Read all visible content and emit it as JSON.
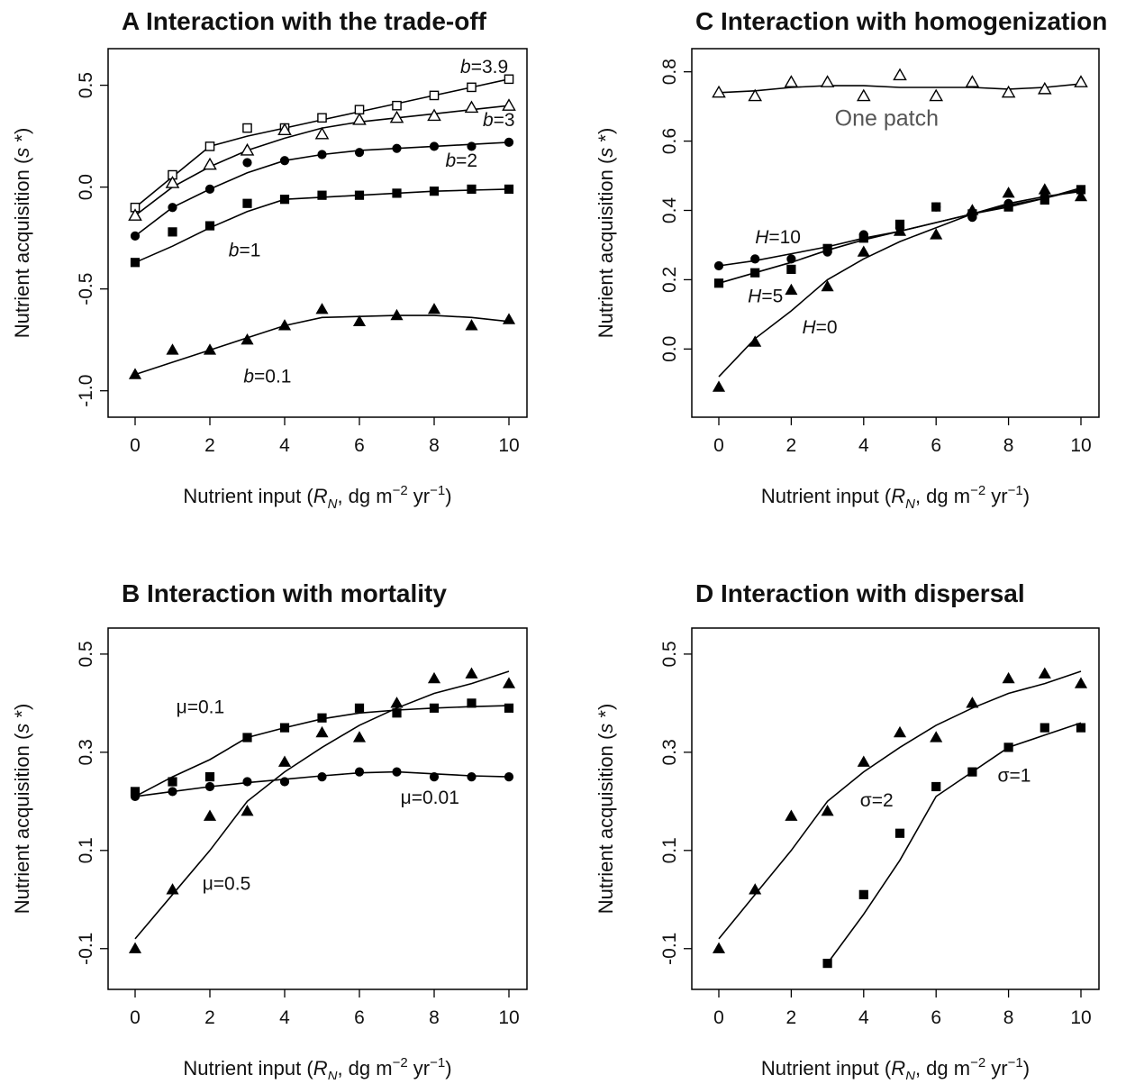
{
  "chart_data": [
    {
      "id": "A",
      "type": "scatter",
      "title": "A Interaction with the trade-off",
      "xlabel": "Nutrient input (R_N, dg m^-2 yr^-1)",
      "ylabel": "Nutrient acquisition (s*)",
      "xlim": [
        0,
        10
      ],
      "ylim": [
        -1.05,
        0.6
      ],
      "xticks": [
        0,
        2,
        4,
        6,
        8,
        10
      ],
      "yticks": [
        -1.0,
        -0.5,
        0.0,
        0.5
      ],
      "ytick_labels": [
        "-1.0",
        "-0.5",
        "0.0",
        "0.5"
      ],
      "series": [
        {
          "marker": "open-square",
          "points_x": [
            0,
            1,
            2,
            3,
            4,
            5,
            6,
            7,
            8,
            9,
            10
          ],
          "points_y": [
            -0.1,
            0.06,
            0.2,
            0.29,
            0.29,
            0.34,
            0.38,
            0.4,
            0.45,
            0.49,
            0.53
          ],
          "line_x": [
            0,
            1,
            2,
            3,
            4,
            5,
            6,
            7,
            8,
            9,
            10
          ],
          "line_y": [
            -0.1,
            0.05,
            0.2,
            0.25,
            0.29,
            0.33,
            0.37,
            0.41,
            0.45,
            0.49,
            0.53
          ]
        },
        {
          "marker": "open-triangle",
          "points_x": [
            0,
            1,
            2,
            3,
            4,
            5,
            6,
            7,
            8,
            9,
            10
          ],
          "points_y": [
            -0.14,
            0.02,
            0.11,
            0.18,
            0.28,
            0.26,
            0.33,
            0.34,
            0.35,
            0.39,
            0.4
          ],
          "line_x": [
            0,
            1,
            2,
            3,
            4,
            5,
            6,
            7,
            8,
            9,
            10
          ],
          "line_y": [
            -0.14,
            0.0,
            0.1,
            0.18,
            0.24,
            0.29,
            0.32,
            0.34,
            0.36,
            0.38,
            0.4
          ]
        },
        {
          "marker": "filled-circle",
          "points_x": [
            0,
            1,
            2,
            3,
            4,
            5,
            6,
            7,
            8,
            9,
            10
          ],
          "points_y": [
            -0.24,
            -0.1,
            -0.01,
            0.12,
            0.13,
            0.16,
            0.17,
            0.19,
            0.2,
            0.2,
            0.22
          ],
          "line_x": [
            0,
            1,
            2,
            3,
            4,
            5,
            6,
            7,
            8,
            9,
            10
          ],
          "line_y": [
            -0.24,
            -0.1,
            -0.01,
            0.07,
            0.13,
            0.16,
            0.18,
            0.19,
            0.2,
            0.21,
            0.22
          ]
        },
        {
          "marker": "filled-square",
          "points_x": [
            0,
            1,
            2,
            3,
            4,
            5,
            6,
            7,
            8,
            9,
            10
          ],
          "points_y": [
            -0.37,
            -0.22,
            -0.19,
            -0.08,
            -0.06,
            -0.04,
            -0.04,
            -0.03,
            -0.02,
            -0.01,
            -0.01
          ],
          "line_x": [
            0,
            1,
            2,
            3,
            4,
            5,
            6,
            7,
            8,
            9,
            10
          ],
          "line_y": [
            -0.37,
            -0.29,
            -0.2,
            -0.12,
            -0.06,
            -0.05,
            -0.04,
            -0.03,
            -0.02,
            -0.015,
            -0.01
          ]
        },
        {
          "marker": "filled-triangle",
          "points_x": [
            0,
            1,
            2,
            3,
            4,
            5,
            6,
            7,
            8,
            9,
            10
          ],
          "points_y": [
            -0.92,
            -0.8,
            -0.8,
            -0.75,
            -0.68,
            -0.6,
            -0.66,
            -0.63,
            -0.6,
            -0.68,
            -0.65
          ],
          "line_x": [
            0,
            1,
            2,
            3,
            4,
            5,
            6,
            7,
            8,
            9,
            10
          ],
          "line_y": [
            -0.92,
            -0.86,
            -0.8,
            -0.74,
            -0.68,
            -0.64,
            -0.635,
            -0.63,
            -0.63,
            -0.64,
            -0.66
          ]
        }
      ],
      "annotations": [
        {
          "text": "b=3.9",
          "italic_prefix": "b",
          "rest": "=3.9",
          "x": 8.7,
          "y": 0.56
        },
        {
          "text": "b=3",
          "italic_prefix": "b",
          "rest": "=3",
          "x": 9.3,
          "y": 0.3
        },
        {
          "text": "b=2",
          "italic_prefix": "b",
          "rest": "=2",
          "x": 8.3,
          "y": 0.1
        },
        {
          "text": "b=1",
          "italic_prefix": "b",
          "rest": "=1",
          "x": 2.5,
          "y": -0.34
        },
        {
          "text": "b=0.1",
          "italic_prefix": "b",
          "rest": "=0.1",
          "x": 2.9,
          "y": -0.96
        }
      ]
    },
    {
      "id": "C",
      "type": "scatter",
      "title": "C Interaction with homogenization",
      "xlabel": "Nutrient input (R_N, dg m^-2 yr^-1)",
      "ylabel": "Nutrient acquisition (s*)",
      "xlim": [
        0,
        10
      ],
      "ylim": [
        -0.15,
        0.82
      ],
      "xticks": [
        0,
        2,
        4,
        6,
        8,
        10
      ],
      "yticks": [
        0.0,
        0.2,
        0.4,
        0.6,
        0.8
      ],
      "ytick_labels": [
        "0.0",
        "0.2",
        "0.4",
        "0.6",
        "0.8"
      ],
      "series": [
        {
          "marker": "open-triangle",
          "points_x": [
            0,
            1,
            2,
            3,
            4,
            5,
            6,
            7,
            8,
            9,
            10
          ],
          "points_y": [
            0.74,
            0.73,
            0.77,
            0.77,
            0.73,
            0.79,
            0.73,
            0.77,
            0.74,
            0.75,
            0.77
          ],
          "line_x": [
            0,
            1,
            2,
            3,
            4,
            5,
            6,
            7,
            8,
            9,
            10
          ],
          "line_y": [
            0.74,
            0.745,
            0.755,
            0.76,
            0.76,
            0.755,
            0.755,
            0.755,
            0.75,
            0.755,
            0.765
          ]
        },
        {
          "marker": "filled-circle",
          "points_x": [
            0,
            1,
            2,
            3,
            4,
            5,
            6,
            7,
            8,
            9,
            10
          ],
          "points_y": [
            0.24,
            0.26,
            0.26,
            0.28,
            0.33,
            0.35,
            0.41,
            0.38,
            0.42,
            0.44,
            0.46
          ],
          "line_x": [
            0,
            1,
            2,
            3,
            4,
            5,
            6,
            7,
            8,
            9,
            10
          ],
          "line_y": [
            0.24,
            0.255,
            0.275,
            0.295,
            0.32,
            0.34,
            0.365,
            0.39,
            0.415,
            0.435,
            0.46
          ]
        },
        {
          "marker": "filled-square",
          "points_x": [
            0,
            1,
            2,
            3,
            4,
            5,
            6,
            7,
            8,
            9,
            10
          ],
          "points_y": [
            0.19,
            0.22,
            0.23,
            0.29,
            0.32,
            0.36,
            0.41,
            0.39,
            0.41,
            0.43,
            0.46
          ],
          "line_x": [
            0,
            1,
            2,
            3,
            4,
            5,
            6,
            7,
            8,
            9,
            10
          ],
          "line_y": [
            0.19,
            0.22,
            0.25,
            0.285,
            0.315,
            0.34,
            0.365,
            0.39,
            0.41,
            0.435,
            0.465
          ]
        },
        {
          "marker": "filled-triangle",
          "points_x": [
            0,
            1,
            2,
            3,
            4,
            5,
            6,
            7,
            8,
            9,
            10
          ],
          "points_y": [
            -0.11,
            0.02,
            0.17,
            0.18,
            0.28,
            0.34,
            0.33,
            0.4,
            0.45,
            0.46,
            0.44
          ],
          "line_x": [
            0,
            1,
            2,
            3,
            4,
            5,
            6,
            7,
            8,
            9,
            10
          ],
          "line_y": [
            -0.08,
            0.03,
            0.11,
            0.2,
            0.26,
            0.31,
            0.35,
            0.39,
            0.42,
            0.44,
            0.455
          ]
        }
      ],
      "annotations": [
        {
          "text": "One patch",
          "x": 3.2,
          "y": 0.645,
          "big": true
        },
        {
          "text": "H=10",
          "italic_prefix": "H",
          "rest": "=10",
          "x": 1.0,
          "y": 0.305
        },
        {
          "text": "H=5",
          "italic_prefix": "H",
          "rest": "=5",
          "x": 0.8,
          "y": 0.135
        },
        {
          "text": "H=0",
          "italic_prefix": "H",
          "rest": "=0",
          "x": 2.3,
          "y": 0.045
        }
      ]
    },
    {
      "id": "B",
      "type": "scatter",
      "title": "B Interaction with mortality",
      "xlabel": "Nutrient input (R_N, dg m^-2 yr^-1)",
      "ylabel": "Nutrient acquisition (s*)",
      "xlim": [
        0,
        10
      ],
      "ylim": [
        -0.15,
        0.52
      ],
      "xticks": [
        0,
        2,
        4,
        6,
        8,
        10
      ],
      "yticks": [
        -0.1,
        0.1,
        0.3,
        0.5
      ],
      "ytick_labels": [
        "-0.1",
        "0.1",
        "0.3",
        "0.5"
      ],
      "series": [
        {
          "marker": "filled-square",
          "points_x": [
            0,
            1,
            2,
            3,
            4,
            5,
            6,
            7,
            8,
            9,
            10
          ],
          "points_y": [
            0.22,
            0.24,
            0.25,
            0.33,
            0.35,
            0.37,
            0.39,
            0.38,
            0.39,
            0.4,
            0.39
          ],
          "line_x": [
            0,
            1,
            2,
            3,
            4,
            5,
            6,
            7,
            8,
            9,
            10
          ],
          "line_y": [
            0.21,
            0.25,
            0.285,
            0.33,
            0.35,
            0.368,
            0.38,
            0.386,
            0.39,
            0.393,
            0.395
          ]
        },
        {
          "marker": "filled-circle",
          "points_x": [
            0,
            1,
            2,
            3,
            4,
            5,
            6,
            7,
            8,
            9,
            10
          ],
          "points_y": [
            0.21,
            0.22,
            0.23,
            0.24,
            0.24,
            0.25,
            0.26,
            0.26,
            0.25,
            0.25,
            0.25
          ],
          "line_x": [
            0,
            1,
            2,
            3,
            4,
            5,
            6,
            7,
            8,
            9,
            10
          ],
          "line_y": [
            0.21,
            0.22,
            0.23,
            0.238,
            0.245,
            0.252,
            0.258,
            0.26,
            0.256,
            0.252,
            0.25
          ]
        },
        {
          "marker": "filled-triangle",
          "points_x": [
            0,
            1,
            2,
            3,
            4,
            5,
            6,
            7,
            8,
            9,
            10
          ],
          "points_y": [
            -0.1,
            0.02,
            0.17,
            0.18,
            0.28,
            0.34,
            0.33,
            0.4,
            0.45,
            0.46,
            0.44
          ],
          "line_x": [
            0,
            1,
            2,
            3,
            4,
            5,
            6,
            7,
            8,
            9,
            10
          ],
          "line_y": [
            -0.08,
            0.01,
            0.1,
            0.2,
            0.26,
            0.31,
            0.355,
            0.39,
            0.42,
            0.44,
            0.465
          ]
        }
      ],
      "annotations": [
        {
          "text": "μ=0.1",
          "x": 1.1,
          "y": 0.38
        },
        {
          "text": "μ=0.01",
          "x": 7.1,
          "y": 0.195
        },
        {
          "text": "μ=0.5",
          "x": 1.8,
          "y": 0.02
        }
      ]
    },
    {
      "id": "D",
      "type": "scatter",
      "title": "D Interaction with dispersal",
      "xlabel": "Nutrient input (R_N, dg m^-2 yr^-1)",
      "ylabel": "Nutrient acquisition (s*)",
      "xlim": [
        0,
        10
      ],
      "ylim": [
        -0.15,
        0.52
      ],
      "xticks": [
        0,
        2,
        4,
        6,
        8,
        10
      ],
      "yticks": [
        -0.1,
        0.1,
        0.3,
        0.5
      ],
      "ytick_labels": [
        "-0.1",
        "0.1",
        "0.3",
        "0.5"
      ],
      "series": [
        {
          "marker": "filled-triangle",
          "points_x": [
            0,
            1,
            2,
            3,
            4,
            5,
            6,
            7,
            8,
            9,
            10
          ],
          "points_y": [
            -0.1,
            0.02,
            0.17,
            0.18,
            0.28,
            0.34,
            0.33,
            0.4,
            0.45,
            0.46,
            0.44
          ],
          "line_x": [
            0,
            1,
            2,
            3,
            4,
            5,
            6,
            7,
            8,
            9,
            10
          ],
          "line_y": [
            -0.08,
            0.01,
            0.1,
            0.2,
            0.26,
            0.31,
            0.355,
            0.39,
            0.42,
            0.44,
            0.465
          ]
        },
        {
          "marker": "filled-square",
          "points_x": [
            3,
            4,
            5,
            6,
            7,
            8,
            9,
            10
          ],
          "points_y": [
            -0.13,
            0.01,
            0.135,
            0.23,
            0.26,
            0.31,
            0.35,
            0.35
          ],
          "line_x": [
            3,
            4,
            5,
            6,
            7,
            8,
            9,
            10
          ],
          "line_y": [
            -0.13,
            -0.03,
            0.08,
            0.21,
            0.26,
            0.31,
            0.335,
            0.36
          ]
        }
      ],
      "annotations": [
        {
          "text": "σ=2",
          "x": 3.9,
          "y": 0.19
        },
        {
          "text": "σ=1",
          "x": 7.7,
          "y": 0.24
        }
      ]
    }
  ]
}
